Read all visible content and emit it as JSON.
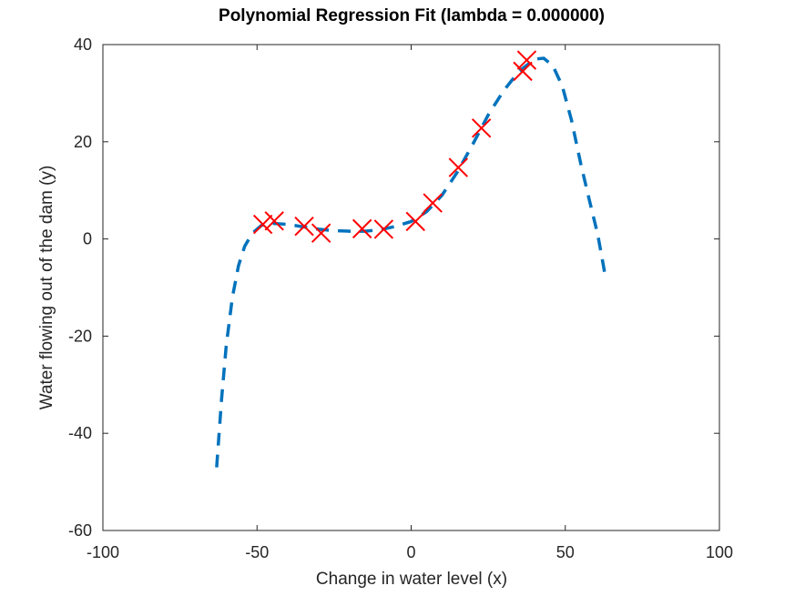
{
  "chart_data": {
    "type": "scatter",
    "title": "Polynomial Regression Fit (lambda = 0.000000)",
    "xlabel": "Change in water level (x)",
    "ylabel": "Water flowing out of the dam (y)",
    "xlim": [
      -100,
      100
    ],
    "ylim": [
      -60,
      40
    ],
    "xticks": [
      -100,
      -50,
      0,
      50,
      100
    ],
    "yticks": [
      -60,
      -40,
      -20,
      0,
      20,
      40
    ],
    "x_tick_labels": [
      "-100",
      "-50",
      "0",
      "50",
      "100"
    ],
    "y_tick_labels": [
      "-60",
      "-40",
      "-20",
      "0",
      "20",
      "40"
    ],
    "grid": false,
    "series": [
      {
        "type": "scatter",
        "marker": "x",
        "color": "#ff0000",
        "points": [
          {
            "x": -48.1,
            "y": 3.0
          },
          {
            "x": -44.4,
            "y": 3.7
          },
          {
            "x": -34.7,
            "y": 2.6
          },
          {
            "x": -29.2,
            "y": 1.2
          },
          {
            "x": -15.9,
            "y": 2.1
          },
          {
            "x": -8.9,
            "y": 2.0
          },
          {
            "x": 1.4,
            "y": 3.6
          },
          {
            "x": 7.0,
            "y": 7.4
          },
          {
            "x": 15.3,
            "y": 14.7
          },
          {
            "x": 22.8,
            "y": 22.8
          },
          {
            "x": 36.2,
            "y": 34.5
          },
          {
            "x": 37.5,
            "y": 36.8
          }
        ]
      },
      {
        "type": "line",
        "style": "dashed",
        "color": "#0072bd",
        "points": [
          {
            "x": -63.1,
            "y": -47
          },
          {
            "x": -61.5,
            "y": -33
          },
          {
            "x": -60.0,
            "y": -22
          },
          {
            "x": -58.0,
            "y": -12
          },
          {
            "x": -56.0,
            "y": -5.5
          },
          {
            "x": -54.0,
            "y": -1.5
          },
          {
            "x": -51.5,
            "y": 1.2
          },
          {
            "x": -48.5,
            "y": 2.8
          },
          {
            "x": -45.0,
            "y": 3.2
          },
          {
            "x": -40.0,
            "y": 3.0
          },
          {
            "x": -35.0,
            "y": 2.5
          },
          {
            "x": -30.0,
            "y": 2.0
          },
          {
            "x": -25.0,
            "y": 1.7
          },
          {
            "x": -20.0,
            "y": 1.6
          },
          {
            "x": -15.0,
            "y": 1.6
          },
          {
            "x": -10.0,
            "y": 1.9
          },
          {
            "x": -5.0,
            "y": 2.6
          },
          {
            "x": 0.0,
            "y": 3.6
          },
          {
            "x": 5.0,
            "y": 5.6
          },
          {
            "x": 10.0,
            "y": 9.0
          },
          {
            "x": 15.0,
            "y": 13.8
          },
          {
            "x": 20.0,
            "y": 19.5
          },
          {
            "x": 25.0,
            "y": 25.5
          },
          {
            "x": 30.0,
            "y": 30.5
          },
          {
            "x": 35.0,
            "y": 34.5
          },
          {
            "x": 40.0,
            "y": 37.0
          },
          {
            "x": 43.0,
            "y": 37.2
          },
          {
            "x": 46.0,
            "y": 35.6
          },
          {
            "x": 49.0,
            "y": 31.5
          },
          {
            "x": 52.0,
            "y": 24.5
          },
          {
            "x": 55.0,
            "y": 15.5
          },
          {
            "x": 58.0,
            "y": 7.5
          },
          {
            "x": 60.5,
            "y": 1.0
          },
          {
            "x": 62.5,
            "y": -6.0
          },
          {
            "x": 63.0,
            "y": -8.0
          }
        ]
      }
    ]
  }
}
